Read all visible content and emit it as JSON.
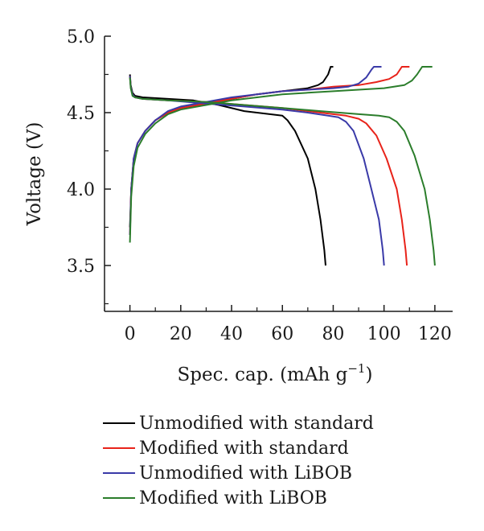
{
  "chart_data": {
    "type": "line",
    "title": "",
    "xlabel_main": "Spec. cap. (mAh g",
    "xlabel_sup": "−1",
    "xlabel_tail": ")",
    "ylabel": "Voltage (V)",
    "xlim": [
      -10,
      127
    ],
    "ylim": [
      3.2,
      5.0
    ],
    "xticks": [
      0,
      20,
      40,
      60,
      80,
      100,
      120
    ],
    "yticks": [
      3.5,
      4.0,
      4.5,
      5.0
    ],
    "ytick_labels": [
      "3.5",
      "4.0",
      "4.5",
      "5.0"
    ],
    "legend_position": "bottom",
    "grid": false,
    "series": [
      {
        "name": "Unmodified with standard",
        "color": "#000000",
        "charge": [
          [
            0,
            3.75
          ],
          [
            0.5,
            4.0
          ],
          [
            1.5,
            4.2
          ],
          [
            3,
            4.3
          ],
          [
            6,
            4.38
          ],
          [
            10,
            4.45
          ],
          [
            15,
            4.5
          ],
          [
            20,
            4.53
          ],
          [
            30,
            4.56
          ],
          [
            40,
            4.59
          ],
          [
            50,
            4.62
          ],
          [
            60,
            4.64
          ],
          [
            70,
            4.66
          ],
          [
            74,
            4.68
          ],
          [
            76,
            4.7
          ],
          [
            78,
            4.75
          ],
          [
            79,
            4.8
          ],
          [
            80,
            4.8
          ]
        ],
        "discharge": [
          [
            0,
            4.75
          ],
          [
            0.3,
            4.68
          ],
          [
            1,
            4.63
          ],
          [
            2,
            4.61
          ],
          [
            5,
            4.6
          ],
          [
            15,
            4.59
          ],
          [
            25,
            4.58
          ],
          [
            35,
            4.55
          ],
          [
            45,
            4.51
          ],
          [
            55,
            4.49
          ],
          [
            60,
            4.48
          ],
          [
            62,
            4.45
          ],
          [
            65,
            4.38
          ],
          [
            70,
            4.2
          ],
          [
            73,
            4.0
          ],
          [
            75,
            3.8
          ],
          [
            76.5,
            3.6
          ],
          [
            77,
            3.5
          ]
        ]
      },
      {
        "name": "Modified with standard",
        "color": "#e8231a",
        "charge": [
          [
            0,
            3.7
          ],
          [
            0.5,
            4.0
          ],
          [
            1.5,
            4.2
          ],
          [
            3,
            4.3
          ],
          [
            6,
            4.38
          ],
          [
            10,
            4.45
          ],
          [
            15,
            4.5
          ],
          [
            20,
            4.53
          ],
          [
            30,
            4.56
          ],
          [
            40,
            4.59
          ],
          [
            50,
            4.62
          ],
          [
            60,
            4.64
          ],
          [
            70,
            4.65
          ],
          [
            80,
            4.67
          ],
          [
            90,
            4.68
          ],
          [
            97,
            4.7
          ],
          [
            102,
            4.72
          ],
          [
            105,
            4.75
          ],
          [
            107,
            4.8
          ],
          [
            110,
            4.8
          ]
        ],
        "discharge": [
          [
            0,
            4.74
          ],
          [
            0.3,
            4.67
          ],
          [
            1,
            4.62
          ],
          [
            2,
            4.6
          ],
          [
            5,
            4.59
          ],
          [
            15,
            4.58
          ],
          [
            30,
            4.57
          ],
          [
            45,
            4.55
          ],
          [
            60,
            4.53
          ],
          [
            75,
            4.5
          ],
          [
            85,
            4.48
          ],
          [
            90,
            4.46
          ],
          [
            93,
            4.43
          ],
          [
            97,
            4.35
          ],
          [
            101,
            4.2
          ],
          [
            105,
            4.0
          ],
          [
            107,
            3.8
          ],
          [
            108.5,
            3.6
          ],
          [
            109,
            3.5
          ]
        ]
      },
      {
        "name": "Unmodified with LiBOB",
        "color": "#3a3aa8",
        "charge": [
          [
            0,
            3.7
          ],
          [
            0.5,
            4.0
          ],
          [
            1.5,
            4.2
          ],
          [
            3,
            4.3
          ],
          [
            6,
            4.38
          ],
          [
            10,
            4.45
          ],
          [
            15,
            4.51
          ],
          [
            20,
            4.54
          ],
          [
            30,
            4.57
          ],
          [
            40,
            4.6
          ],
          [
            50,
            4.62
          ],
          [
            60,
            4.64
          ],
          [
            70,
            4.65
          ],
          [
            80,
            4.66
          ],
          [
            86,
            4.67
          ],
          [
            90,
            4.69
          ],
          [
            93,
            4.73
          ],
          [
            95,
            4.78
          ],
          [
            96,
            4.8
          ],
          [
            99,
            4.8
          ]
        ],
        "discharge": [
          [
            0,
            4.74
          ],
          [
            0.3,
            4.67
          ],
          [
            1,
            4.62
          ],
          [
            2,
            4.6
          ],
          [
            5,
            4.59
          ],
          [
            15,
            4.58
          ],
          [
            30,
            4.56
          ],
          [
            45,
            4.54
          ],
          [
            60,
            4.52
          ],
          [
            70,
            4.5
          ],
          [
            78,
            4.48
          ],
          [
            82,
            4.47
          ],
          [
            85,
            4.44
          ],
          [
            88,
            4.38
          ],
          [
            92,
            4.2
          ],
          [
            95,
            4.0
          ],
          [
            98,
            3.8
          ],
          [
            99.5,
            3.6
          ],
          [
            100,
            3.5
          ]
        ]
      },
      {
        "name": "Modified with LiBOB",
        "color": "#2b7d2b",
        "charge": [
          [
            0,
            3.65
          ],
          [
            0.5,
            3.95
          ],
          [
            1.5,
            4.15
          ],
          [
            3,
            4.27
          ],
          [
            6,
            4.36
          ],
          [
            10,
            4.43
          ],
          [
            15,
            4.49
          ],
          [
            20,
            4.52
          ],
          [
            30,
            4.55
          ],
          [
            40,
            4.58
          ],
          [
            50,
            4.6
          ],
          [
            60,
            4.62
          ],
          [
            70,
            4.63
          ],
          [
            80,
            4.64
          ],
          [
            90,
            4.65
          ],
          [
            100,
            4.66
          ],
          [
            108,
            4.68
          ],
          [
            111,
            4.71
          ],
          [
            113,
            4.75
          ],
          [
            115,
            4.8
          ],
          [
            119,
            4.8
          ]
        ],
        "discharge": [
          [
            0,
            4.73
          ],
          [
            0.3,
            4.66
          ],
          [
            1,
            4.61
          ],
          [
            2,
            4.6
          ],
          [
            5,
            4.59
          ],
          [
            15,
            4.58
          ],
          [
            30,
            4.57
          ],
          [
            45,
            4.55
          ],
          [
            60,
            4.53
          ],
          [
            75,
            4.51
          ],
          [
            90,
            4.49
          ],
          [
            98,
            4.48
          ],
          [
            102,
            4.47
          ],
          [
            105,
            4.44
          ],
          [
            108,
            4.38
          ],
          [
            112,
            4.22
          ],
          [
            116,
            4.0
          ],
          [
            118,
            3.8
          ],
          [
            119.5,
            3.6
          ],
          [
            120,
            3.5
          ]
        ]
      }
    ]
  }
}
